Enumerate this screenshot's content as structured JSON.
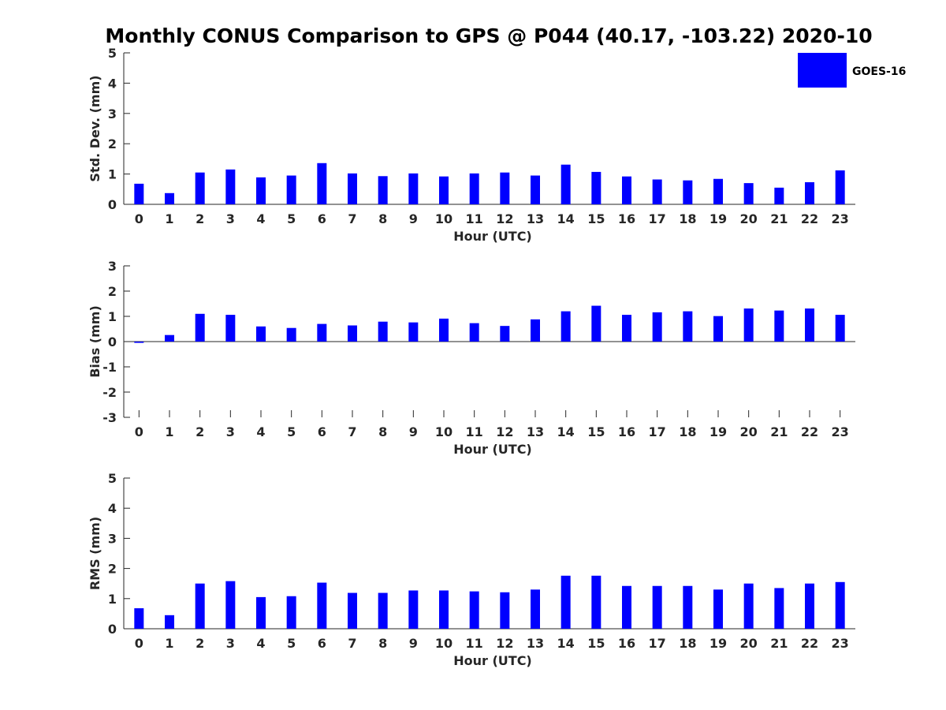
{
  "title": "Monthly CONUS Comparison to GPS @ P044 (40.17, -103.22) 2020-10",
  "legend": {
    "label": "GOES-16",
    "color": "#0000ff",
    "placement": "top-right"
  },
  "chart_data": [
    {
      "type": "bar",
      "xlabel": "Hour (UTC)",
      "ylabel": "Std. Dev. (mm)",
      "ylim": [
        0,
        5
      ],
      "yticks": [
        "0",
        "1",
        "2",
        "3",
        "4",
        "5"
      ],
      "grid": false,
      "categories": [
        "0",
        "1",
        "2",
        "3",
        "4",
        "5",
        "6",
        "7",
        "8",
        "9",
        "10",
        "11",
        "12",
        "13",
        "14",
        "15",
        "16",
        "17",
        "18",
        "19",
        "20",
        "21",
        "22",
        "23"
      ],
      "series": [
        {
          "name": "GOES-16",
          "values": [
            0.68,
            0.37,
            1.05,
            1.15,
            0.89,
            0.95,
            1.36,
            1.02,
            0.93,
            1.02,
            0.92,
            1.02,
            1.05,
            0.95,
            1.31,
            1.07,
            0.92,
            0.82,
            0.79,
            0.84,
            0.7,
            0.55,
            0.73,
            1.12
          ]
        }
      ]
    },
    {
      "type": "bar",
      "xlabel": "Hour (UTC)",
      "ylabel": "Bias (mm)",
      "ylim": [
        -3,
        3
      ],
      "yticks": [
        "-3",
        "-2",
        "-1",
        "0",
        "1",
        "2",
        "3"
      ],
      "grid": false,
      "categories": [
        "0",
        "1",
        "2",
        "3",
        "4",
        "5",
        "6",
        "7",
        "8",
        "9",
        "10",
        "11",
        "12",
        "13",
        "14",
        "15",
        "16",
        "17",
        "18",
        "19",
        "20",
        "21",
        "22",
        "23"
      ],
      "series": [
        {
          "name": "GOES-16",
          "values": [
            -0.05,
            0.26,
            1.1,
            1.06,
            0.6,
            0.54,
            0.7,
            0.64,
            0.79,
            0.76,
            0.91,
            0.73,
            0.62,
            0.88,
            1.2,
            1.42,
            1.06,
            1.16,
            1.2,
            1.01,
            1.31,
            1.23,
            1.31,
            1.06
          ]
        }
      ]
    },
    {
      "type": "bar",
      "xlabel": "Hour (UTC)",
      "ylabel": "RMS (mm)",
      "ylim": [
        0,
        5
      ],
      "yticks": [
        "0",
        "1",
        "2",
        "3",
        "4",
        "5"
      ],
      "grid": false,
      "categories": [
        "0",
        "1",
        "2",
        "3",
        "4",
        "5",
        "6",
        "7",
        "8",
        "9",
        "10",
        "11",
        "12",
        "13",
        "14",
        "15",
        "16",
        "17",
        "18",
        "19",
        "20",
        "21",
        "22",
        "23"
      ],
      "series": [
        {
          "name": "GOES-16",
          "values": [
            0.68,
            0.45,
            1.5,
            1.58,
            1.05,
            1.08,
            1.53,
            1.19,
            1.19,
            1.27,
            1.27,
            1.24,
            1.21,
            1.3,
            1.76,
            1.76,
            1.42,
            1.42,
            1.42,
            1.3,
            1.5,
            1.35,
            1.5,
            1.55
          ]
        }
      ]
    }
  ]
}
